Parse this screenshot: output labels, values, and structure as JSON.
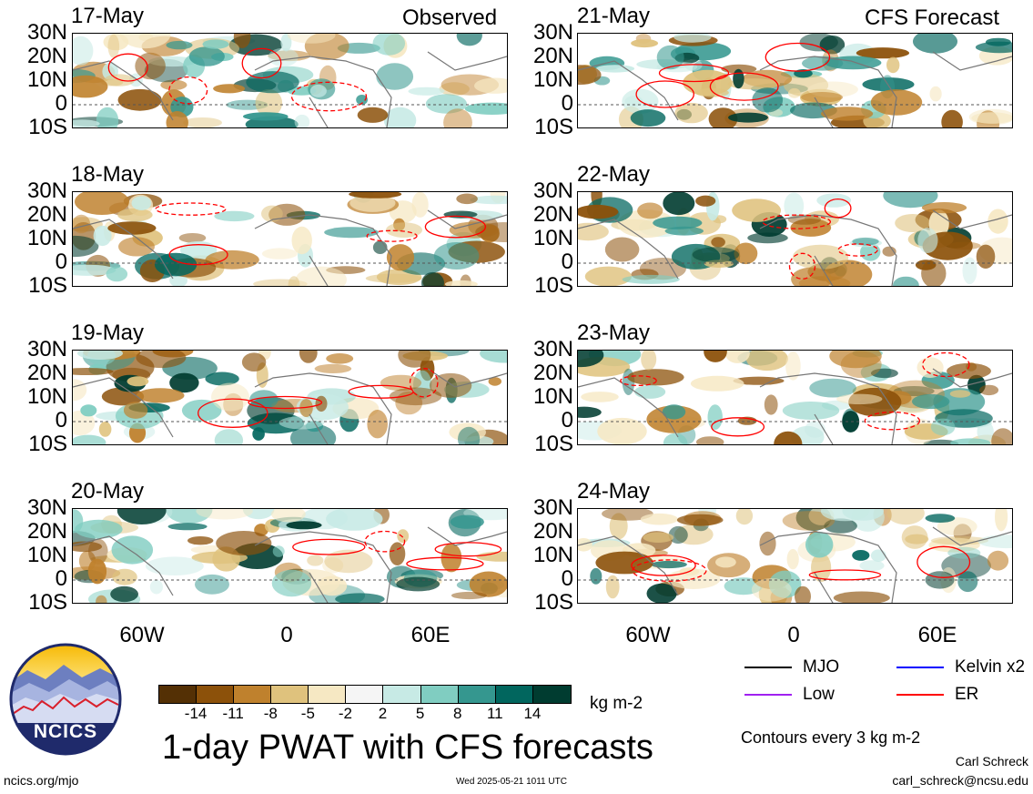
{
  "headers": {
    "observed": "Observed",
    "forecast": "CFS Forecast"
  },
  "panels": {
    "left": [
      "17-May",
      "18-May",
      "19-May",
      "20-May"
    ],
    "right": [
      "21-May",
      "22-May",
      "23-May",
      "24-May"
    ]
  },
  "lat_labels": [
    "30N",
    "20N",
    "10N",
    "0",
    "10S"
  ],
  "lon_labels": [
    "60W",
    "0",
    "60E"
  ],
  "colorbar": {
    "ticks": [
      "-14",
      "-11",
      "-8",
      "-5",
      "-2",
      "2",
      "5",
      "8",
      "11",
      "14"
    ],
    "unit": "kg m-2",
    "colors": [
      "#543005",
      "#8c510a",
      "#bf812d",
      "#dfc27d",
      "#f6e8c3",
      "#f5f5f5",
      "#c7eae5",
      "#80cdc1",
      "#35978f",
      "#01665e",
      "#003c30"
    ]
  },
  "title": "1-day PWAT with CFS forecasts",
  "legend": {
    "items": [
      {
        "label": "MJO",
        "color": "#000000"
      },
      {
        "label": "Kelvin x2",
        "color": "#0000ff"
      },
      {
        "label": "Low",
        "color": "#a020f0"
      },
      {
        "label": "ER",
        "color": "#ff0000"
      }
    ],
    "contours_note": "Contours every 3 kg m-2"
  },
  "logo": {
    "text": "NCICS"
  },
  "footer": {
    "site": "ncics.org/mjo",
    "timestamp": "Wed 2025-05-21 1011 UTC",
    "author": "Carl Schreck",
    "email": "carl_schreck@ncsu.edu"
  }
}
